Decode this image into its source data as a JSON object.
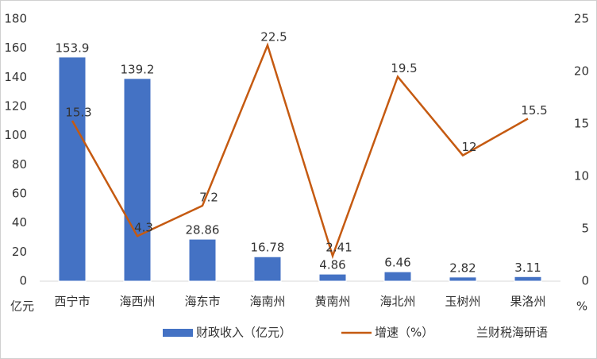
{
  "chart_data": {
    "type": "bar",
    "categories": [
      "西宁市",
      "海西州",
      "海东市",
      "海南州",
      "黄南州",
      "海北州",
      "玉树州",
      "果洛州"
    ],
    "series": [
      {
        "name": "财政收入（亿元）",
        "type": "bar",
        "color": "#4472c4",
        "values": [
          153.9,
          139.2,
          28.86,
          16.78,
          4.86,
          6.46,
          2.82,
          3.11
        ]
      },
      {
        "name": "增速（%）",
        "type": "line",
        "axis": "y2",
        "color": "#c55a11",
        "values": [
          15.3,
          4.3,
          7.2,
          22.5,
          2.41,
          19.5,
          12,
          15.5
        ]
      }
    ],
    "y_label": "亿元",
    "y2_label": "%",
    "ylim": [
      0,
      180
    ],
    "yticks": [
      0,
      20,
      40,
      60,
      80,
      100,
      120,
      140,
      160,
      180
    ],
    "y2lim": [
      0,
      25
    ],
    "y2ticks": [
      0,
      5,
      10,
      15,
      20,
      25
    ],
    "watermark": "兰财税海研语"
  }
}
